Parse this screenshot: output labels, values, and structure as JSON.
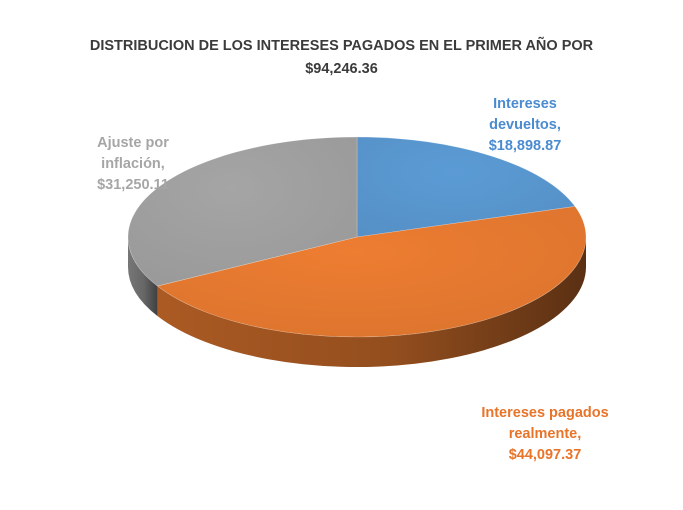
{
  "chart_data": {
    "type": "pie",
    "title_lines": [
      "DISTRIBUCION DE LOS INTERESES PAGADOS EN EL PRIMER AÑO POR",
      "$94,246.36"
    ],
    "slices": [
      {
        "category": "Intereses devueltos",
        "value": 18898.87,
        "label_lines": [
          "Intereses",
          "devueltos,",
          "$18,898.87"
        ],
        "color": "#5b9bd5",
        "label_color": "#4a8bd0"
      },
      {
        "category": "Intereses pagados realmente",
        "value": 44097.37,
        "label_lines": [
          "Intereses pagados",
          "realmente,",
          "$44,097.37"
        ],
        "color": "#ed7d31",
        "label_color": "#e8742a"
      },
      {
        "category": "Ajuste por inflación",
        "value": 31250.11,
        "label_lines": [
          "Ajuste por",
          "inflación,",
          "$31,250.11"
        ],
        "color": "#a5a5a5",
        "label_color": "#a6a6a6"
      }
    ],
    "style": "3d-pie",
    "legend": "none"
  }
}
